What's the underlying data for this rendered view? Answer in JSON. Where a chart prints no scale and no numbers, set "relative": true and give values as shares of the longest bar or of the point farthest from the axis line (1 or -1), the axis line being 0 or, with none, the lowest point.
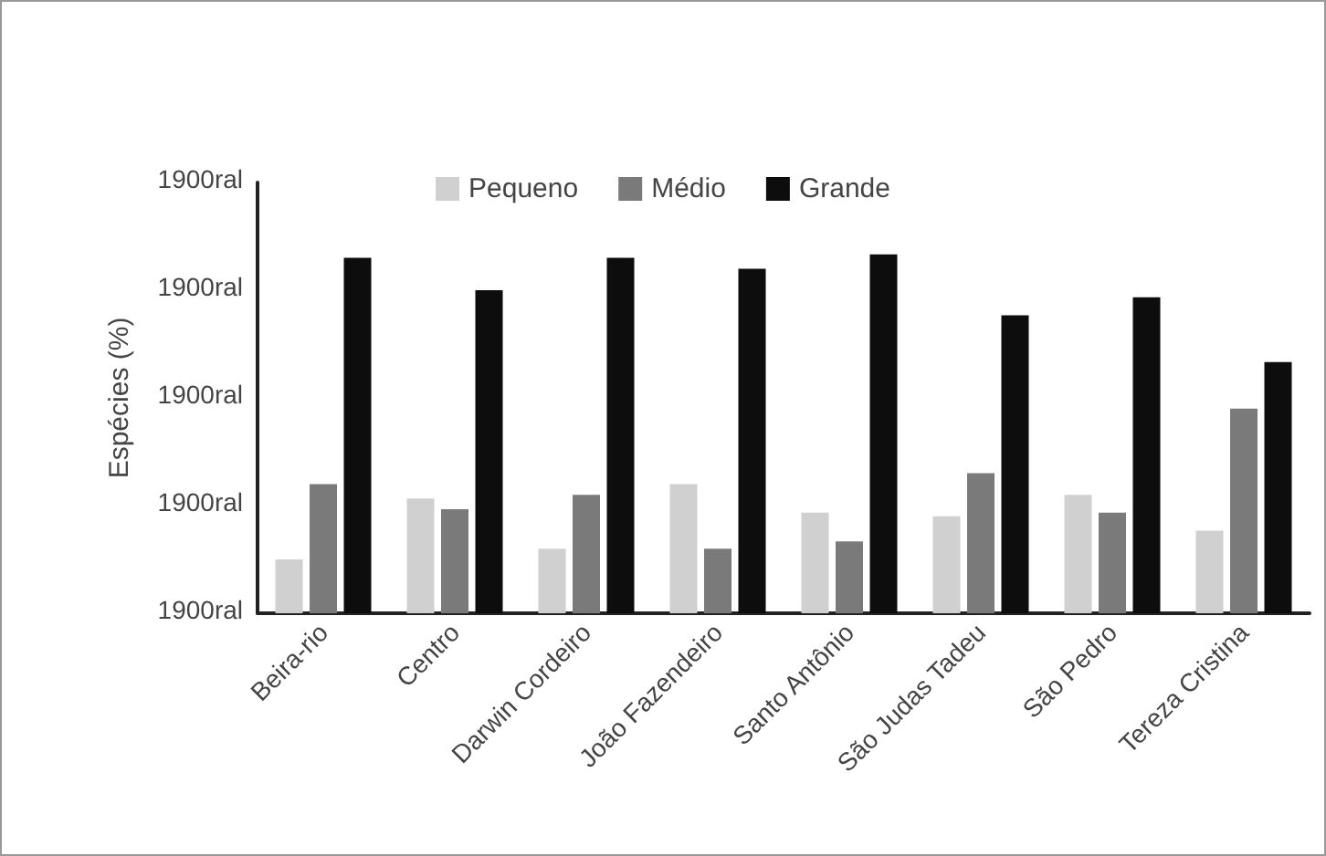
{
  "chart_data": {
    "type": "bar",
    "relative": true,
    "ylabel": "Espécies (%)",
    "categories": [
      "Beira-rio",
      "Centro",
      "Darwin Cordeiro",
      "João Fazendeiro",
      "Santo Antônio",
      "São Judas Tadeu",
      "São Pedro",
      "Tereza Cristina"
    ],
    "series": [
      {
        "name": "Pequeno",
        "color": "#d0d0d0",
        "values": [
          0.15,
          0.32,
          0.18,
          0.36,
          0.28,
          0.27,
          0.33,
          0.23
        ]
      },
      {
        "name": "Médio",
        "color": "#7a7a7a",
        "values": [
          0.36,
          0.29,
          0.33,
          0.18,
          0.2,
          0.39,
          0.28,
          0.57
        ]
      },
      {
        "name": "Grande",
        "color": "#0d0d0d",
        "values": [
          0.99,
          0.9,
          0.99,
          0.96,
          1,
          0.83,
          0.88,
          0.7
        ]
      }
    ],
    "annotations": [
      "1900ral",
      "1900ral",
      "1900ral",
      "1900ral",
      "1900ral"
    ],
    "legend": "top",
    "grid": false
  }
}
